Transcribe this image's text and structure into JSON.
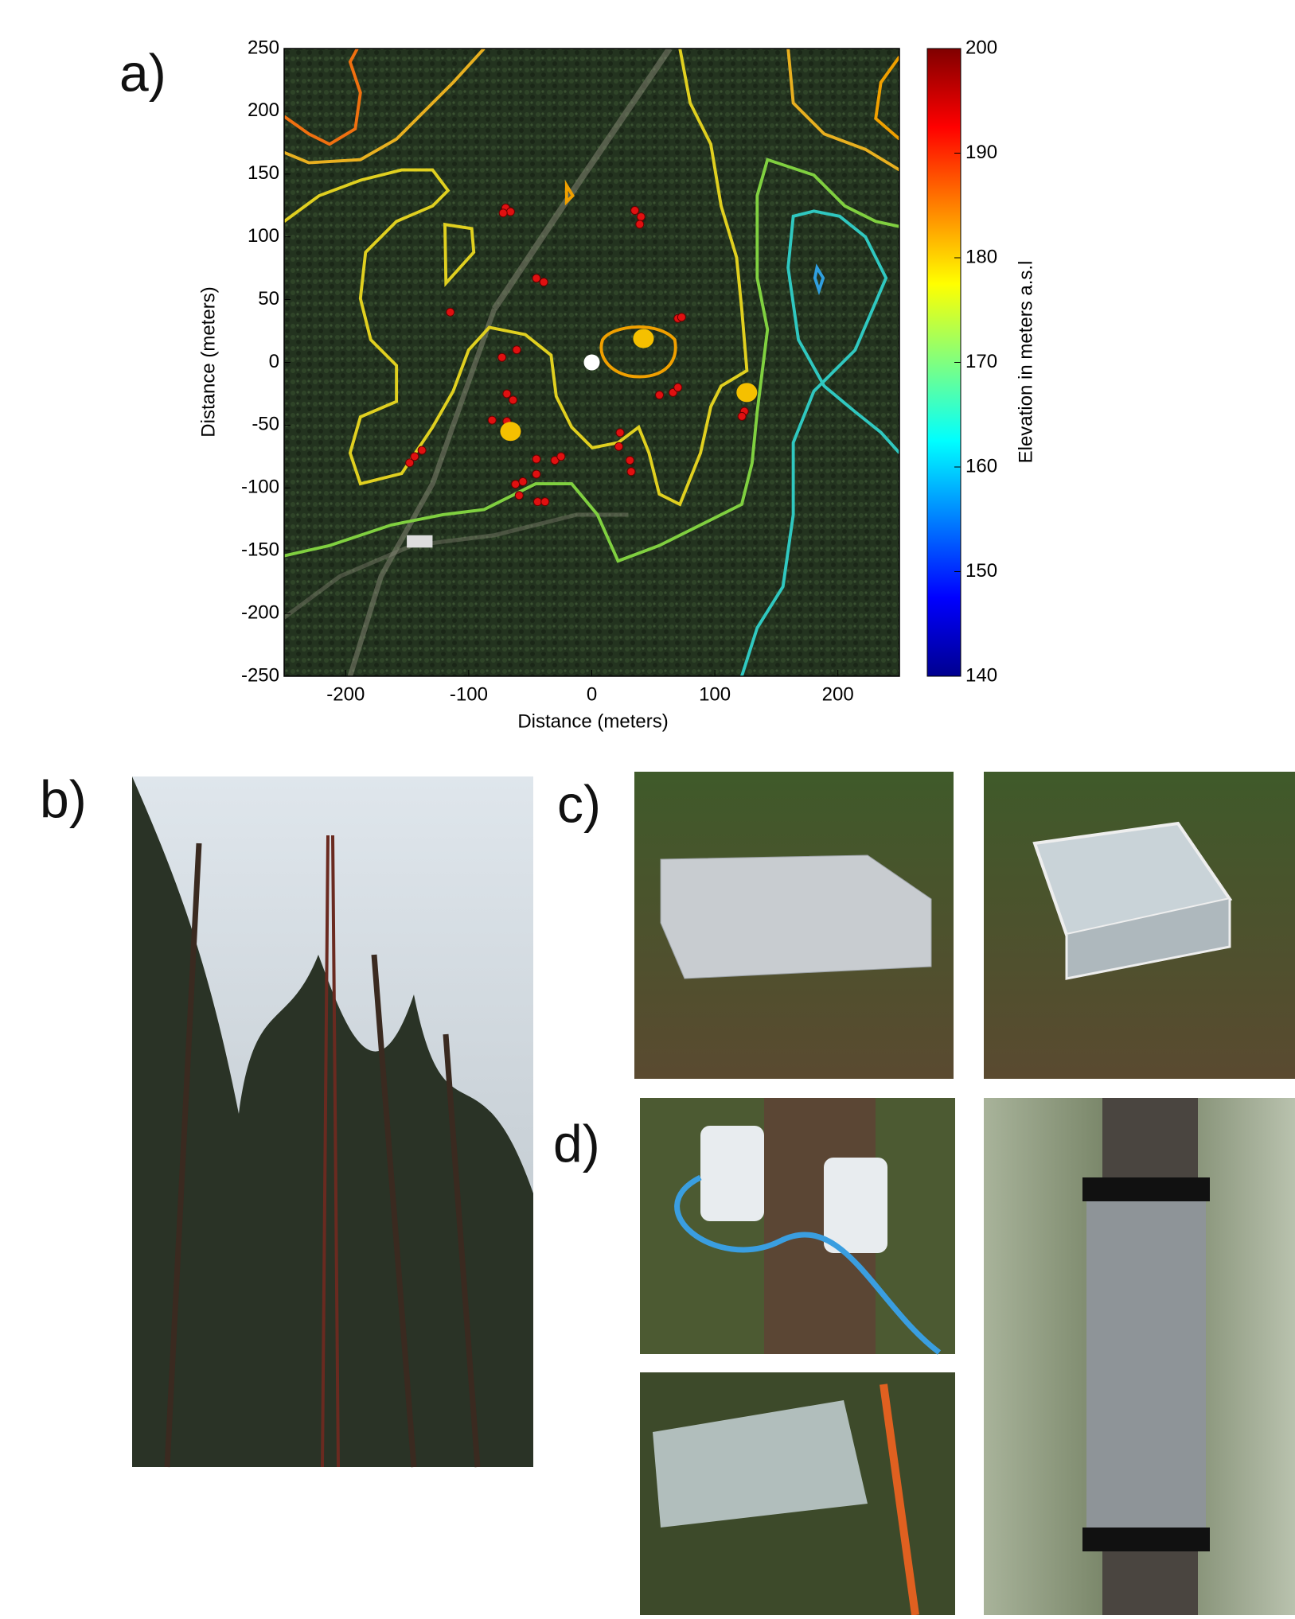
{
  "panel_labels": [
    "a)",
    "b)",
    "c)",
    "d)"
  ],
  "chart_data": {
    "type": "scatter",
    "xlabel": "Distance (meters)",
    "ylabel": "Distance (meters)",
    "xlim": [
      -250,
      250
    ],
    "ylim": [
      -250,
      250
    ],
    "xticks": [
      -200,
      -100,
      0,
      100,
      200
    ],
    "yticks": [
      -250,
      -200,
      -150,
      -100,
      -50,
      0,
      50,
      100,
      150,
      200,
      250
    ],
    "series": [
      {
        "color": "#e01010",
        "x": [
          -70,
          -66,
          -72,
          35,
          40,
          39,
          -45,
          -39,
          -115,
          70,
          73,
          -73,
          -61,
          -69,
          -64,
          -81,
          -69,
          -148,
          -144,
          -138,
          -45,
          -30,
          -25,
          -62,
          -56,
          -45,
          -59,
          -44,
          -38,
          23,
          22,
          31,
          32,
          55,
          66,
          70,
          124,
          122
        ],
        "values": [
          123,
          120,
          119,
          121,
          116,
          110,
          67,
          64,
          40,
          35,
          36,
          4,
          10,
          -25,
          -30,
          -46,
          -47,
          -80,
          -75,
          -70,
          -77,
          -78,
          -75,
          -97,
          -95,
          -89,
          -106,
          -111,
          -111,
          -56,
          -67,
          -78,
          -87,
          -26,
          -24,
          -20,
          -39,
          -43
        ]
      },
      {
        "color": "#f5c000",
        "x": [
          42,
          126,
          -66
        ],
        "values": [
          19,
          -24,
          -55
        ]
      },
      {
        "color": "#ffffff",
        "x": [
          0
        ],
        "values": [
          0
        ]
      }
    ],
    "colorbar": {
      "label": "Elevation  in meters a.s.l",
      "lim": [
        140,
        200
      ],
      "ticks": [
        140,
        150,
        160,
        170,
        180,
        190,
        200
      ]
    }
  }
}
